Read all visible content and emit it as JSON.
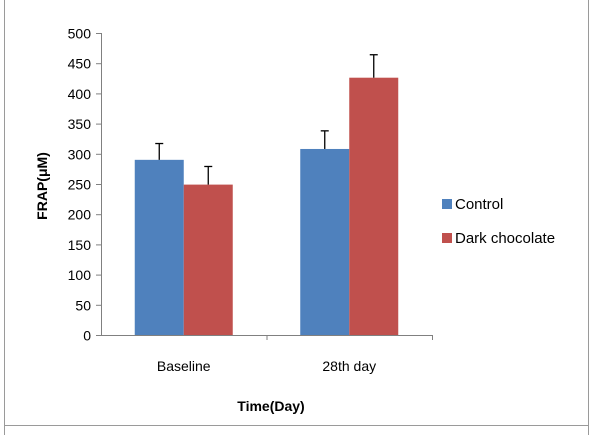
{
  "chart_data": {
    "type": "bar",
    "title": "",
    "xlabel": "Time(Day)",
    "ylabel": "FRAP(μM)",
    "categories": [
      "Baseline",
      "28th day"
    ],
    "series": [
      {
        "name": "Control",
        "values": [
          290,
          308
        ],
        "errors": [
          27,
          30
        ],
        "color": "#4f81bd"
      },
      {
        "name": "Dark chocolate",
        "values": [
          249,
          426
        ],
        "errors": [
          30,
          38
        ],
        "color": "#c0504d"
      }
    ],
    "ylim": [
      0,
      500
    ],
    "yticks": [
      0,
      50,
      100,
      150,
      200,
      250,
      300,
      350,
      400,
      450,
      500
    ],
    "grid": false,
    "legend_position": "right",
    "error_bar_color": "#000000"
  }
}
